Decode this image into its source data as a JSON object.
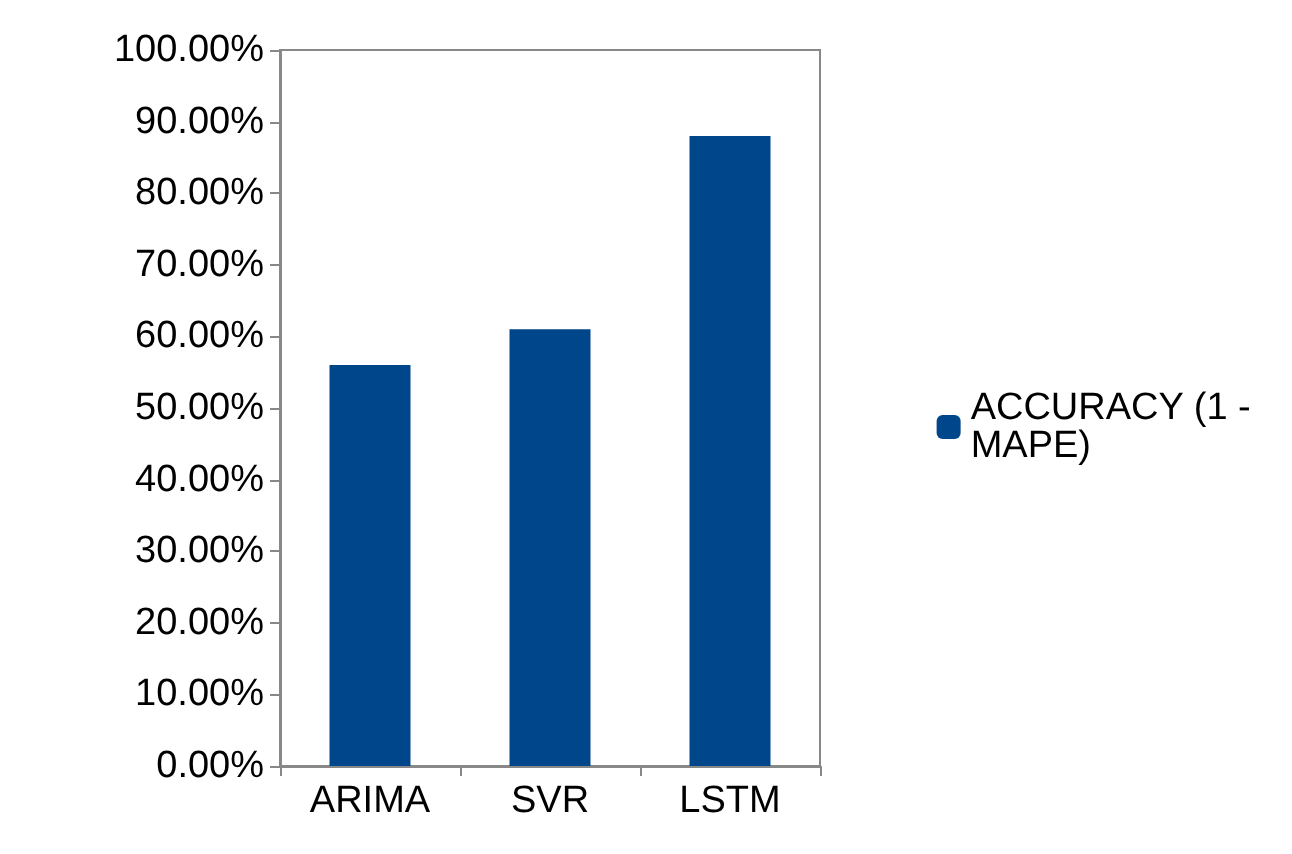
{
  "chart_data": {
    "type": "bar",
    "categories": [
      "ARIMA",
      "SVR",
      "LSTM"
    ],
    "series": [
      {
        "name": "ACCURACY (1 - MAPE)",
        "color": "#00468b",
        "values": [
          56,
          61,
          88
        ]
      }
    ],
    "ylim": [
      0,
      100
    ],
    "yticks": [
      {
        "value": 0,
        "label": "0.00%"
      },
      {
        "value": 10,
        "label": "10.00%"
      },
      {
        "value": 20,
        "label": "20.00%"
      },
      {
        "value": 30,
        "label": "30.00%"
      },
      {
        "value": 40,
        "label": "40.00%"
      },
      {
        "value": 50,
        "label": "50.00%"
      },
      {
        "value": 60,
        "label": "60.00%"
      },
      {
        "value": 70,
        "label": "70.00%"
      },
      {
        "value": 80,
        "label": "80.00%"
      },
      {
        "value": 90,
        "label": "90.00%"
      },
      {
        "value": 100,
        "label": "100.00%"
      }
    ],
    "grid": false,
    "legend": "right"
  }
}
